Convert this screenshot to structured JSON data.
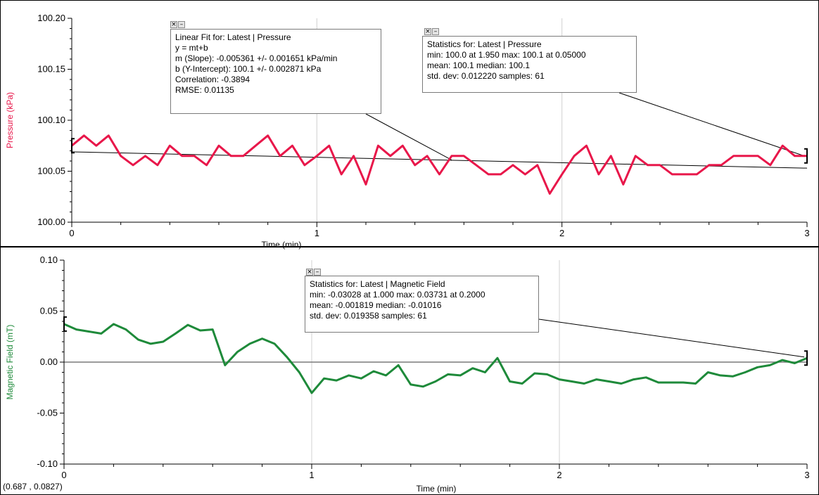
{
  "chart_data": [
    {
      "type": "line",
      "ylabel": "Pressure (kPa)",
      "xlabel": "Time (min)",
      "xlim": [
        0,
        3
      ],
      "ylim": [
        100.0,
        100.2
      ],
      "x_ticks": [
        "0",
        "1",
        "2",
        "3"
      ],
      "y_ticks": [
        "100.00",
        "100.05",
        "100.10",
        "100.15",
        "100.20"
      ],
      "grid": "vertical",
      "series": [
        {
          "color": "#e8174a",
          "x_step": 0.05,
          "values": [
            100.075,
            100.085,
            100.075,
            100.085,
            100.065,
            100.056,
            100.065,
            100.056,
            100.075,
            100.065,
            100.065,
            100.056,
            100.075,
            100.065,
            100.065,
            100.075,
            100.085,
            100.065,
            100.075,
            100.056,
            100.065,
            100.075,
            100.047,
            100.065,
            100.037,
            100.075,
            100.065,
            100.075,
            100.056,
            100.065,
            100.047,
            100.065,
            100.065,
            100.056,
            100.047,
            100.047,
            100.056,
            100.047,
            100.056,
            100.028,
            100.047,
            100.065,
            100.075,
            100.047,
            100.065,
            100.037,
            100.065,
            100.056,
            100.056,
            100.047,
            100.047,
            100.047,
            100.056,
            100.056,
            100.065,
            100.065,
            100.065,
            100.056,
            100.075,
            100.065,
            100.065
          ]
        }
      ],
      "fit_line": {
        "color": "#000000",
        "x": [
          0,
          3
        ],
        "y": [
          100.069,
          100.053
        ]
      },
      "fit_box": {
        "lines": [
          "Linear Fit for:  Latest | Pressure",
          "y = mt+b",
          "m (Slope): -0.005361 +/- 0.001651 kPa/min",
          "b (Y-Intercept): 100.1 +/- 0.002871 kPa",
          "Correlation: -0.3894",
          "RMSE: 0.01135"
        ],
        "anchor": [
          1.55,
          100.061
        ]
      },
      "stats_box": {
        "lines": [
          "Statistics for: Latest | Pressure",
          "min: 100.0 at 1.950 max: 100.1 at 0.05000",
          "mean: 100.1 median: 100.1",
          "std. dev: 0.012220 samples: 61"
        ],
        "anchor": [
          3,
          100.065
        ]
      },
      "bracket_range": [
        0,
        3
      ]
    },
    {
      "type": "line",
      "ylabel": "Magnetic Field (mT)",
      "xlabel": "Time (min)",
      "xlim": [
        0,
        3
      ],
      "ylim": [
        -0.1,
        0.1
      ],
      "x_ticks": [
        "0",
        "1",
        "2",
        "3"
      ],
      "y_ticks": [
        "-0.10",
        "-0.05",
        "0.00",
        "0.05",
        "0.10"
      ],
      "grid": "vertical",
      "zero_line": true,
      "series": [
        {
          "color": "#1e8a3a",
          "x_step": 0.05,
          "values": [
            0.0373,
            0.032,
            0.03,
            0.028,
            0.0373,
            0.032,
            0.022,
            0.018,
            0.02,
            0.028,
            0.0365,
            0.031,
            0.032,
            -0.003,
            0.01,
            0.018,
            0.023,
            0.018,
            0.005,
            -0.01,
            -0.0303,
            -0.016,
            -0.018,
            -0.013,
            -0.016,
            -0.009,
            -0.013,
            -0.003,
            -0.022,
            -0.024,
            -0.019,
            -0.012,
            -0.013,
            -0.006,
            -0.01,
            0.004,
            -0.019,
            -0.021,
            -0.011,
            -0.012,
            -0.017,
            -0.019,
            -0.021,
            -0.017,
            -0.019,
            -0.021,
            -0.017,
            -0.015,
            -0.02,
            -0.02,
            -0.02,
            -0.021,
            -0.01,
            -0.013,
            -0.014,
            -0.01,
            -0.005,
            -0.003,
            0.002,
            -0.001,
            0.004
          ]
        }
      ],
      "stats_box": {
        "lines": [
          "Statistics for: Latest | Magnetic Field",
          "min: -0.03028 at 1.000 max: 0.03731 at 0.2000",
          "mean: -0.001819 median: -0.01016",
          "std. dev: 0.019358 samples: 61"
        ],
        "anchor": [
          3,
          0.005
        ]
      },
      "bracket_range": [
        0,
        3
      ]
    }
  ],
  "status": {
    "cursor_readout": "(0.687 , 0.0827)"
  }
}
